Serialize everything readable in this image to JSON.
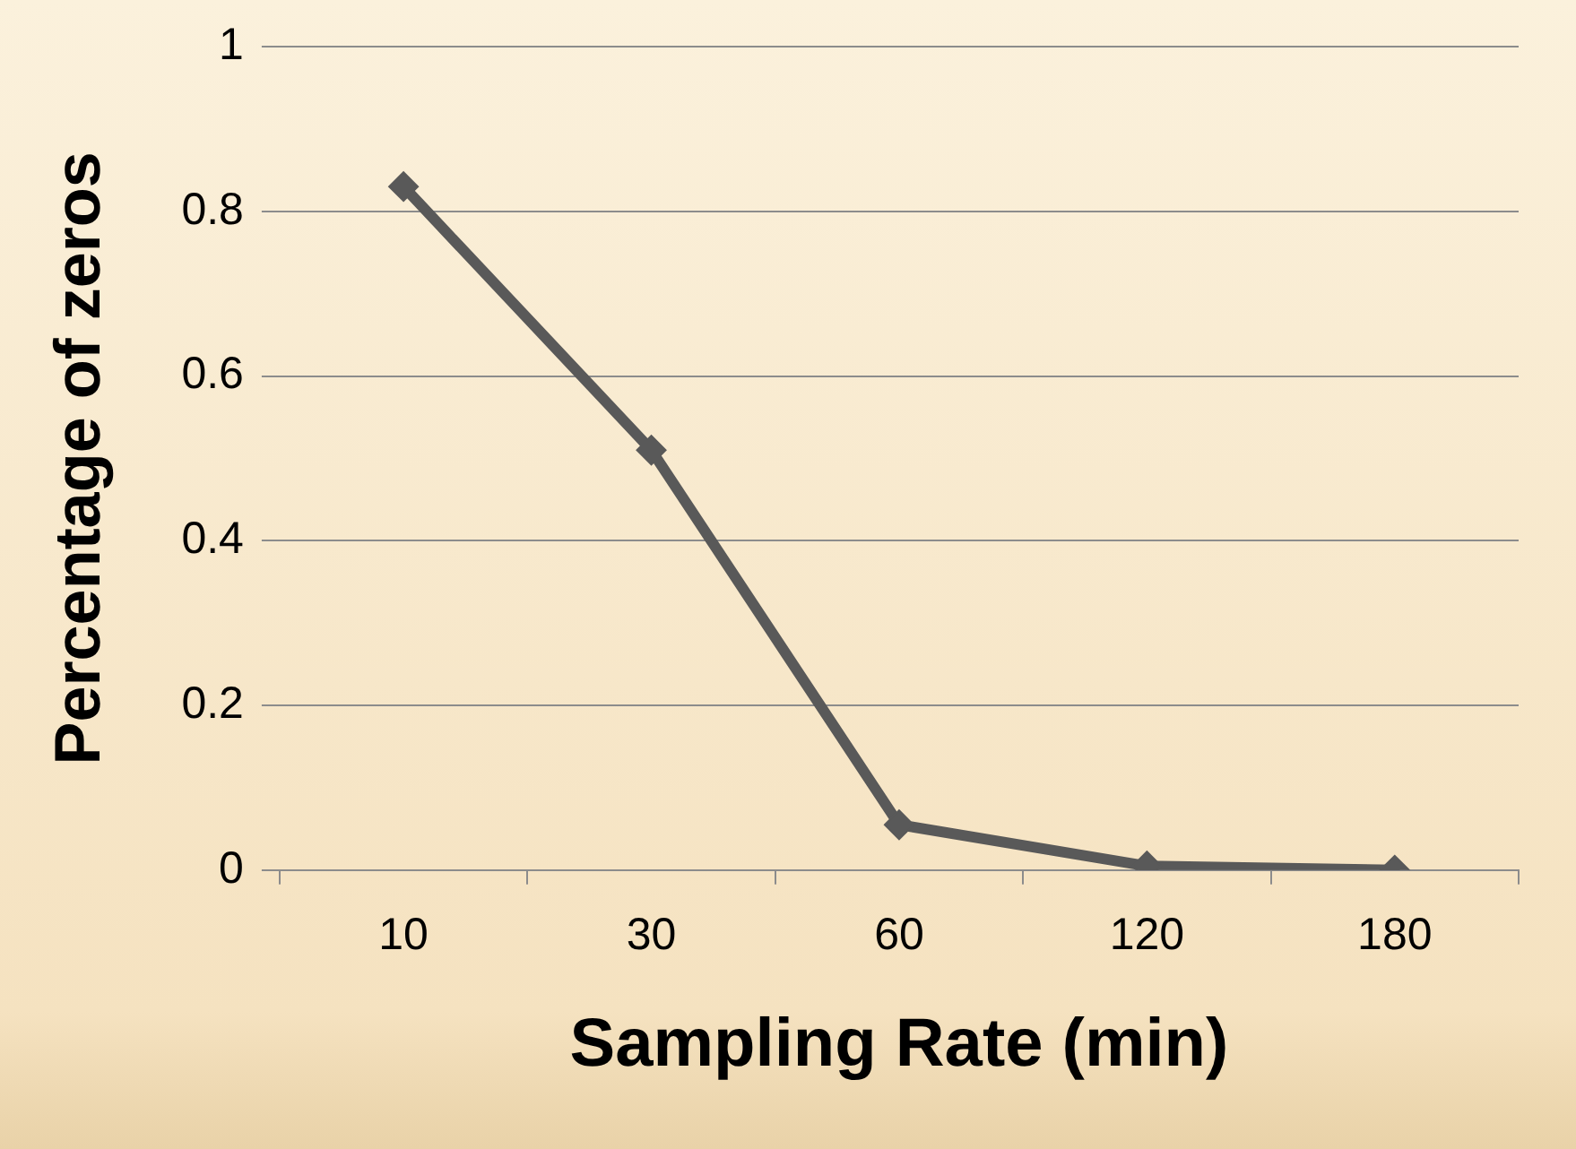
{
  "chart_data": {
    "type": "line",
    "xlabel": "Sampling Rate (min)",
    "ylabel": "Percentage of zeros",
    "categories": [
      "10",
      "30",
      "60",
      "120",
      "180"
    ],
    "series": [
      {
        "color": "#595959",
        "values": [
          0.83,
          0.51,
          0.055,
          0.005,
          0
        ]
      }
    ],
    "ylim": [
      0,
      1
    ],
    "yticks": [
      0,
      0.2,
      0.4,
      0.6,
      0.8,
      1
    ],
    "grid": "y",
    "legend": false,
    "marker": "diamond",
    "line_style": "solid"
  }
}
